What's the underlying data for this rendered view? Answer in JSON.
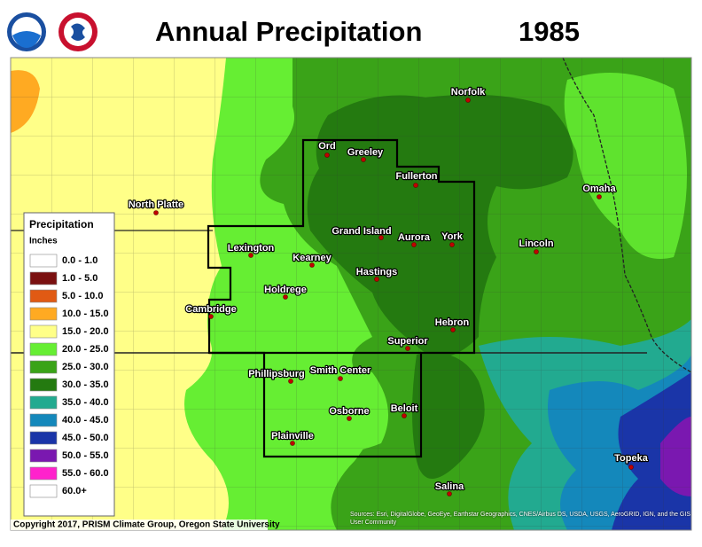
{
  "header": {
    "title": "Annual Precipitation",
    "year": "1985"
  },
  "cities": [
    {
      "label": "Norfolk"
    },
    {
      "label": "Ord"
    },
    {
      "label": "Greeley"
    },
    {
      "label": "Fullerton"
    },
    {
      "label": "North Platte"
    },
    {
      "label": "Omaha"
    },
    {
      "label": "Grand Island"
    },
    {
      "label": "Aurora"
    },
    {
      "label": "York"
    },
    {
      "label": "Lincoln"
    },
    {
      "label": "Lexington"
    },
    {
      "label": "Kearney"
    },
    {
      "label": "Hastings"
    },
    {
      "label": "Holdrege"
    },
    {
      "label": "Cambridge"
    },
    {
      "label": "Hebron"
    },
    {
      "label": "Superior"
    },
    {
      "label": "Phillipsburg"
    },
    {
      "label": "Smith Center"
    },
    {
      "label": "Beloit"
    },
    {
      "label": "Osborne"
    },
    {
      "label": "Plainville"
    },
    {
      "label": "Topeka"
    },
    {
      "label": "Salina"
    }
  ],
  "legend": {
    "title": "Precipitation",
    "units": "Inches",
    "items": [
      {
        "label": "0.0 - 1.0",
        "color": "#ffffff"
      },
      {
        "label": "1.0 - 5.0",
        "color": "#7a1010"
      },
      {
        "label": "5.0 - 10.0",
        "color": "#e05a14"
      },
      {
        "label": "10.0 - 15.0",
        "color": "#ffaa22"
      },
      {
        "label": "15.0 - 20.0",
        "color": "#ffff88"
      },
      {
        "label": "20.0 - 25.0",
        "color": "#66ee33"
      },
      {
        "label": "25.0 - 30.0",
        "color": "#3aa318"
      },
      {
        "label": "30.0 - 35.0",
        "color": "#247a10"
      },
      {
        "label": "35.0 - 40.0",
        "color": "#22aa90"
      },
      {
        "label": "40.0 - 45.0",
        "color": "#1488bb"
      },
      {
        "label": "45.0 - 50.0",
        "color": "#1a35a8"
      },
      {
        "label": "50.0 - 55.0",
        "color": "#7a18b0"
      },
      {
        "label": "55.0 - 60.0",
        "color": "#ff22cc"
      },
      {
        "label": "60.0+",
        "color": "#ffffff"
      }
    ]
  },
  "footer": {
    "copyright": "Copyright 2017, PRISM Climate Group, Oregon State University",
    "source": "Sources: Esri, DigitalGlobe, GeoEye, Earthstar Geographics, CNES/Airbus DS, USDA, USGS, AeroGRID, IGN, and the GIS User Community"
  }
}
